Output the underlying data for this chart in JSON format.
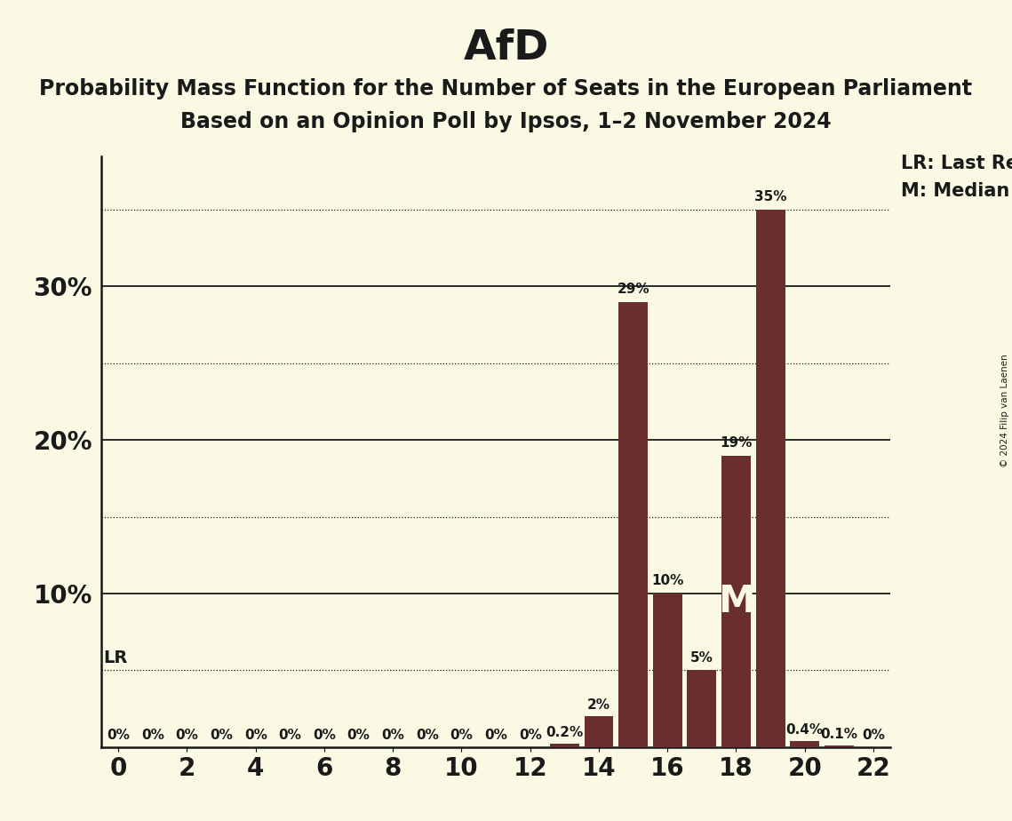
{
  "title": "AfD",
  "subtitle_line1": "Probability Mass Function for the Number of Seats in the European Parliament",
  "subtitle_line2": "Based on an Opinion Poll by Ipsos, 1–2 November 2024",
  "copyright": "© 2024 Filip van Laenen",
  "seats": [
    0,
    1,
    2,
    3,
    4,
    5,
    6,
    7,
    8,
    9,
    10,
    11,
    12,
    13,
    14,
    15,
    16,
    17,
    18,
    19,
    20,
    21,
    22
  ],
  "probabilities": [
    0,
    0,
    0,
    0,
    0,
    0,
    0,
    0,
    0,
    0,
    0,
    0,
    0,
    0.2,
    2,
    29,
    10,
    5,
    19,
    35,
    0.4,
    0.1,
    0
  ],
  "bar_labels": [
    "0%",
    "0%",
    "0%",
    "0%",
    "0%",
    "0%",
    "0%",
    "0%",
    "0%",
    "0%",
    "0%",
    "0%",
    "0%",
    "0.2%",
    "2%",
    "29%",
    "10%",
    "5%",
    "19%",
    "35%",
    "0.4%",
    "0.1%",
    "0%"
  ],
  "bar_color": "#6B2E2E",
  "background_color": "#FAF9E4",
  "lr_seat": 19,
  "lr_value": 35,
  "median_seat": 18,
  "median_value": 19,
  "lr_line_y": 5,
  "xlim": [
    -0.5,
    22.5
  ],
  "ylim": [
    0,
    38.5
  ],
  "xtick_positions": [
    0,
    2,
    4,
    6,
    8,
    10,
    12,
    14,
    16,
    18,
    20,
    22
  ],
  "ytick_positions": [
    10,
    20,
    30
  ],
  "ytick_labels": [
    "10%",
    "20%",
    "30%"
  ],
  "dotted_lines": [
    5,
    15,
    25,
    35
  ],
  "solid_lines": [
    10,
    20,
    30
  ],
  "title_fontsize": 34,
  "subtitle_fontsize": 17,
  "bar_label_fontsize": 11,
  "axis_tick_fontsize": 20,
  "annotation_fontsize": 15
}
